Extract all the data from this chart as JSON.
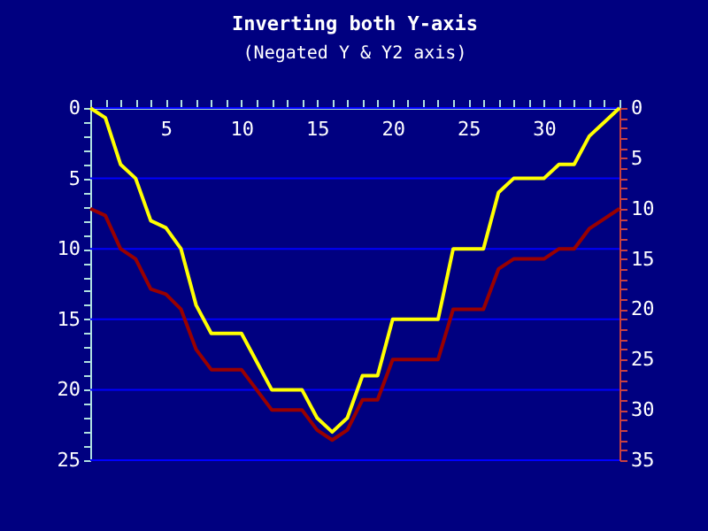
{
  "chart_data": {
    "type": "line",
    "title": "Inverting both Y-axis",
    "subtitle": "(Negated Y & Y2 axis)",
    "x": [
      0,
      1,
      2,
      3,
      4,
      5,
      6,
      7,
      8,
      9,
      10,
      11,
      12,
      13,
      14,
      15,
      16,
      17,
      18,
      19,
      20,
      21,
      22,
      23,
      24,
      25,
      26,
      27,
      28,
      29,
      30,
      31,
      32,
      33,
      34,
      35
    ],
    "series": [
      {
        "color": "#ffff00",
        "values": [
          0,
          0.7,
          4,
          5,
          8,
          8.5,
          10,
          14,
          16,
          16,
          16,
          18,
          20,
          20,
          20,
          22,
          23,
          22,
          19,
          19,
          15,
          15,
          15,
          15,
          10,
          10,
          10,
          6,
          5,
          5,
          5,
          4,
          4,
          2,
          1,
          0
        ]
      },
      {
        "color": "#990000",
        "axis": "y2",
        "values": [
          10,
          10.7,
          14,
          15,
          18,
          18.5,
          20,
          24,
          26,
          26,
          26,
          28,
          30,
          30,
          30,
          32,
          33,
          32,
          29,
          29,
          25,
          25,
          25,
          25,
          20,
          20,
          20,
          16,
          15,
          15,
          15,
          14,
          14,
          12,
          11,
          10
        ]
      }
    ],
    "xlim": [
      0,
      35
    ],
    "xticks": [
      {
        "value": 0,
        "label": null
      },
      {
        "value": 1,
        "label": null
      },
      {
        "value": 2,
        "label": null
      },
      {
        "value": 3,
        "label": null
      },
      {
        "value": 4,
        "label": null
      },
      5,
      {
        "value": 6,
        "label": null
      },
      {
        "value": 7,
        "label": null
      },
      {
        "value": 8,
        "label": null
      },
      {
        "value": 9,
        "label": null
      },
      10,
      {
        "value": 11,
        "label": null
      },
      {
        "value": 12,
        "label": null
      },
      {
        "value": 13,
        "label": null
      },
      {
        "value": 14,
        "label": null
      },
      15,
      {
        "value": 16,
        "label": null
      },
      {
        "value": 17,
        "label": null
      },
      {
        "value": 18,
        "label": null
      },
      {
        "value": 19,
        "label": null
      },
      20,
      {
        "value": 21,
        "label": null
      },
      {
        "value": 22,
        "label": null
      },
      {
        "value": 23,
        "label": null
      },
      {
        "value": 24,
        "label": null
      },
      25,
      {
        "value": 26,
        "label": null
      },
      {
        "value": 27,
        "label": null
      },
      {
        "value": 28,
        "label": null
      },
      {
        "value": 29,
        "label": null
      },
      30,
      {
        "value": 31,
        "label": null
      },
      {
        "value": 32,
        "label": null
      },
      {
        "value": 33,
        "label": null
      },
      {
        "value": 34,
        "label": null
      },
      {
        "value": 35,
        "label": null
      }
    ],
    "ylim": [
      25,
      0
    ],
    "yticks": [
      0,
      {
        "value": 1,
        "label": null
      },
      {
        "value": 2,
        "label": null
      },
      {
        "value": 3,
        "label": null
      },
      {
        "value": 4,
        "label": null
      },
      5,
      {
        "value": 6,
        "label": null
      },
      {
        "value": 7,
        "label": null
      },
      {
        "value": 8,
        "label": null
      },
      {
        "value": 9,
        "label": null
      },
      10,
      {
        "value": 11,
        "label": null
      },
      {
        "value": 12,
        "label": null
      },
      {
        "value": 13,
        "label": null
      },
      {
        "value": 14,
        "label": null
      },
      15,
      {
        "value": 16,
        "label": null
      },
      {
        "value": 17,
        "label": null
      },
      {
        "value": 18,
        "label": null
      },
      {
        "value": 19,
        "label": null
      },
      20,
      {
        "value": 21,
        "label": null
      },
      {
        "value": 22,
        "label": null
      },
      {
        "value": 23,
        "label": null
      },
      {
        "value": 24,
        "label": null
      },
      25
    ],
    "y2lim": [
      35,
      0
    ],
    "y2ticks": [
      0,
      {
        "value": 1,
        "label": null
      },
      {
        "value": 2,
        "label": null
      },
      {
        "value": 3,
        "label": null
      },
      {
        "value": 4,
        "label": null
      },
      5,
      {
        "value": 6,
        "label": null
      },
      {
        "value": 7,
        "label": null
      },
      {
        "value": 8,
        "label": null
      },
      {
        "value": 9,
        "label": null
      },
      10,
      {
        "value": 11,
        "label": null
      },
      {
        "value": 12,
        "label": null
      },
      {
        "value": 13,
        "label": null
      },
      {
        "value": 14,
        "label": null
      },
      15,
      {
        "value": 16,
        "label": null
      },
      {
        "value": 17,
        "label": null
      },
      {
        "value": 18,
        "label": null
      },
      {
        "value": 19,
        "label": null
      },
      20,
      {
        "value": 21,
        "label": null
      },
      {
        "value": 22,
        "label": null
      },
      {
        "value": 23,
        "label": null
      },
      {
        "value": 24,
        "label": null
      },
      25,
      {
        "value": 26,
        "label": null
      },
      {
        "value": 27,
        "label": null
      },
      {
        "value": 28,
        "label": null
      },
      {
        "value": 29,
        "label": null
      },
      30,
      {
        "value": 31,
        "label": null
      },
      {
        "value": 32,
        "label": null
      },
      {
        "value": 33,
        "label": null
      },
      {
        "value": 34,
        "label": null
      },
      35
    ],
    "grid": "y",
    "marker": "none",
    "line_style": "solid"
  }
}
